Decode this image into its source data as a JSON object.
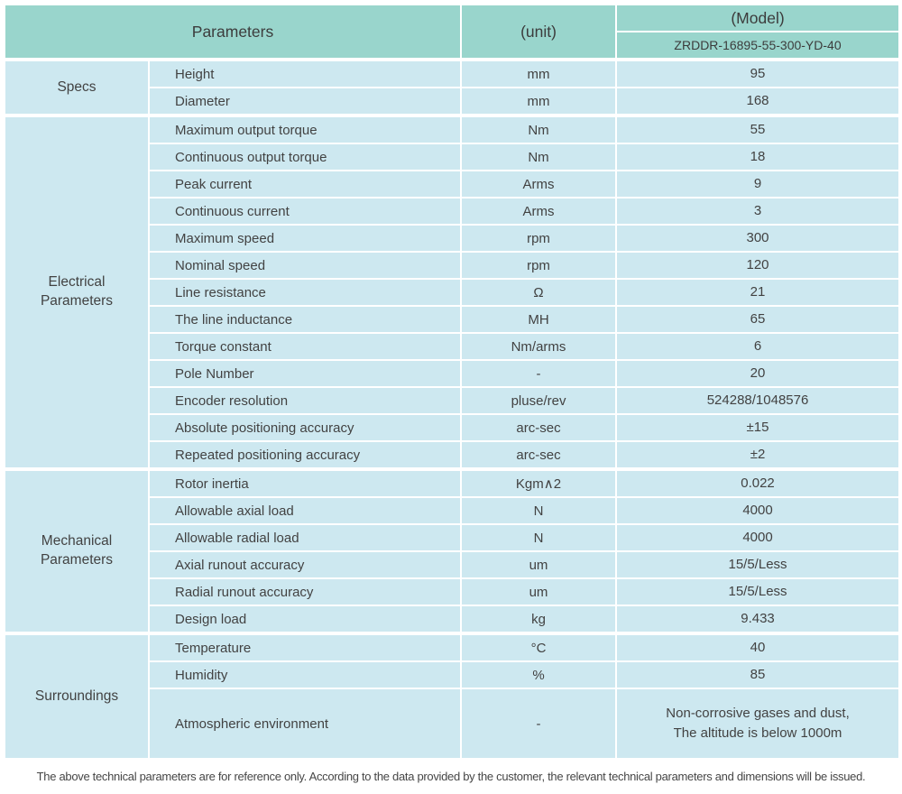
{
  "table": {
    "header": {
      "parameters_label": "Parameters",
      "unit_label": "(unit)",
      "model_label": "(Model)",
      "model_value": "ZRDDR-16895-55-300-YD-40"
    },
    "sections": [
      {
        "id": "specs",
        "name": "Specs",
        "rows": [
          {
            "parameter": "Height",
            "unit": "mm",
            "value": "95"
          },
          {
            "parameter": "Diameter",
            "unit": "mm",
            "value": "168"
          }
        ]
      },
      {
        "id": "electrical-parameters",
        "name": "Electrical Parameters",
        "rows": [
          {
            "parameter": "Maximum output torque",
            "unit": "Nm",
            "value": "55"
          },
          {
            "parameter": "Continuous output torque",
            "unit": "Nm",
            "value": "18"
          },
          {
            "parameter": "Peak current",
            "unit": "Arms",
            "value": "9"
          },
          {
            "parameter": "Continuous current",
            "unit": "Arms",
            "value": "3"
          },
          {
            "parameter": "Maximum speed",
            "unit": "rpm",
            "value": "300"
          },
          {
            "parameter": "Nominal speed",
            "unit": "rpm",
            "value": "120"
          },
          {
            "parameter": "Line resistance",
            "unit": "Ω",
            "value": "21"
          },
          {
            "parameter": "The line inductance",
            "unit": "MH",
            "value": "65"
          },
          {
            "parameter": "Torque constant",
            "unit": "Nm/arms",
            "value": "6"
          },
          {
            "parameter": "Pole Number",
            "unit": "-",
            "value": "20"
          },
          {
            "parameter": "Encoder resolution",
            "unit": "pluse/rev",
            "value": "524288/1048576"
          },
          {
            "parameter": "Absolute positioning accuracy",
            "unit": "arc-sec",
            "value": "±15"
          },
          {
            "parameter": "Repeated positioning accuracy",
            "unit": "arc-sec",
            "value": "±2"
          }
        ]
      },
      {
        "id": "mechanical-parameters",
        "name": "Mechanical Parameters",
        "rows": [
          {
            "parameter": "Rotor inertia",
            "unit": "Kgm∧2",
            "value": "0.022"
          },
          {
            "parameter": "Allowable axial load",
            "unit": "N",
            "value": "4000"
          },
          {
            "parameter": "Allowable radial load",
            "unit": "N",
            "value": "4000"
          },
          {
            "parameter": "Axial runout accuracy",
            "unit": "um",
            "value": "15/5/Less"
          },
          {
            "parameter": "Radial runout accuracy",
            "unit": "um",
            "value": "15/5/Less"
          },
          {
            "parameter": "Design load",
            "unit": "kg",
            "value": "9.433"
          }
        ]
      },
      {
        "id": "surroundings",
        "name": "Surroundings",
        "rows": [
          {
            "parameter": "Temperature",
            "unit": "°C",
            "value": "40"
          },
          {
            "parameter": "Humidity",
            "unit": "%",
            "value": "85"
          },
          {
            "parameter": "Atmospheric environment",
            "unit": "-",
            "value": "Non-corrosive gases and dust,\nThe altitude is below 1000m",
            "tall": true
          }
        ]
      }
    ]
  },
  "footer": {
    "note": "The above technical parameters are for reference only. According to the data provided by the customer, the relevant technical parameters and dimensions will be issued."
  },
  "colors": {
    "header_bg": "#99d5cc",
    "cell_bg": "#cde8f0",
    "divider": "#ffffff",
    "text": "#3e3e3e"
  }
}
